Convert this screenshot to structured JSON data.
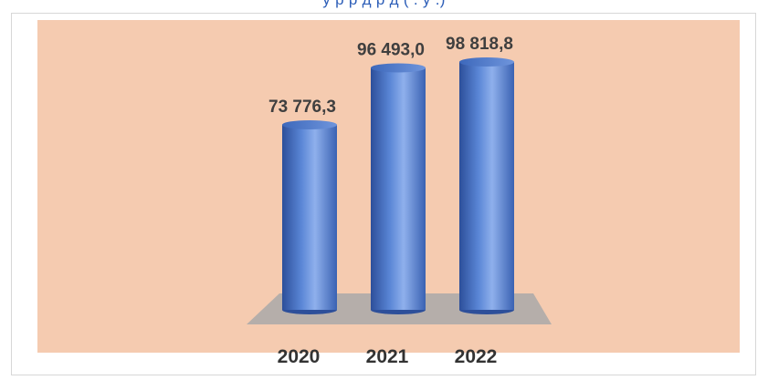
{
  "header": {
    "caption": "у    р              р д    р д       (   . у  .)"
  },
  "colors": {
    "plot_area": "#f5cbb0",
    "floor": "#a9a9a9",
    "bar": "#4f79c8",
    "bar_dark": "#2d4f9a",
    "bar_light": "#8fb0ec"
  },
  "chart_data": {
    "type": "bar",
    "style": "3d-cylinder",
    "categories": [
      "2020",
      "2021",
      "2022"
    ],
    "values": [
      73776.3,
      96493.0,
      98818.8
    ],
    "data_labels": [
      "73 776,3",
      "96 493,0",
      "98 818,8"
    ],
    "grid": false,
    "legend": "none"
  }
}
